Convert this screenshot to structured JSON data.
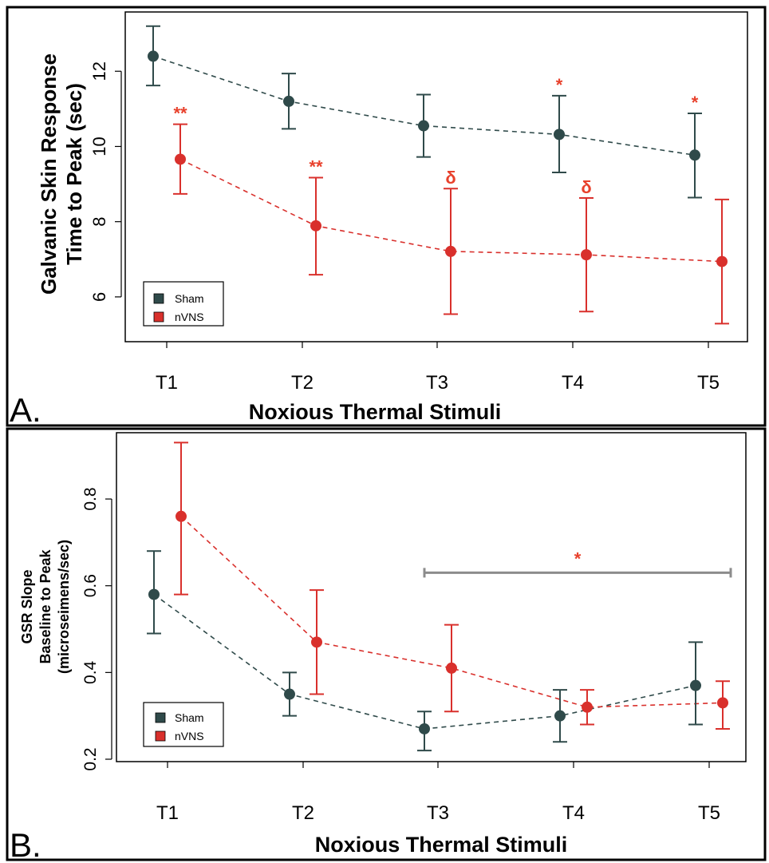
{
  "colors": {
    "sham": "#2f4a4a",
    "nvns": "#d9302c",
    "annotation": "#e8412c",
    "bracket": "#8c8c8c",
    "frame": "#000000"
  },
  "chart_data": [
    {
      "type": "line",
      "panel_label": "A.",
      "ylabel_lines": [
        "Galvanic Skin Response",
        "Time to Peak (sec)"
      ],
      "xlabel": "Noxious Thermal Stimuli",
      "categories": [
        "T1",
        "T2",
        "T3",
        "T4",
        "T5"
      ],
      "yticks": [
        6,
        8,
        10,
        12
      ],
      "ylim": [
        5.0,
        13.3
      ],
      "legend_position": "bottom-left",
      "series": [
        {
          "name": "Sham",
          "color_key": "sham",
          "values": [
            12.4,
            11.2,
            10.55,
            10.32,
            9.77
          ],
          "err_low": [
            11.62,
            10.47,
            9.72,
            9.31,
            8.64
          ],
          "err_high": [
            13.2,
            11.94,
            11.38,
            11.35,
            10.88
          ]
        },
        {
          "name": "nVNS",
          "color_key": "nvns",
          "values": [
            9.66,
            7.89,
            7.21,
            7.12,
            6.94
          ],
          "err_low": [
            8.74,
            6.59,
            5.54,
            5.61,
            5.29
          ],
          "err_high": [
            10.59,
            9.17,
            8.88,
            8.63,
            8.59
          ]
        }
      ],
      "annotations": [
        {
          "text": "**",
          "series": 1,
          "category": 0
        },
        {
          "text": "**",
          "series": 1,
          "category": 1
        },
        {
          "text": "δ",
          "series": 1,
          "category": 2
        },
        {
          "text": "*",
          "series": 0,
          "category": 3
        },
        {
          "text": "δ",
          "series": 1,
          "category": 3
        },
        {
          "text": "*",
          "series": 0,
          "category": 4
        }
      ]
    },
    {
      "type": "line",
      "panel_label": "B.",
      "ylabel_lines": [
        "GSR Slope",
        "Baseline to Peak",
        "(microseimens/sec)"
      ],
      "xlabel": "Noxious Thermal Stimuli",
      "categories": [
        "T1",
        "T2",
        "T3",
        "T4",
        "T5"
      ],
      "yticks": [
        0.2,
        0.4,
        0.6,
        0.8
      ],
      "ylim": [
        0.2,
        0.94
      ],
      "legend_position": "bottom-left",
      "series": [
        {
          "name": "Sham",
          "color_key": "sham",
          "values": [
            0.58,
            0.35,
            0.27,
            0.3,
            0.37
          ],
          "err_low": [
            0.49,
            0.3,
            0.22,
            0.24,
            0.28
          ],
          "err_high": [
            0.68,
            0.4,
            0.31,
            0.36,
            0.47
          ]
        },
        {
          "name": "nVNS",
          "color_key": "nvns",
          "values": [
            0.76,
            0.47,
            0.41,
            0.32,
            0.33
          ],
          "err_low": [
            0.58,
            0.35,
            0.31,
            0.28,
            0.27
          ],
          "err_high": [
            0.93,
            0.59,
            0.51,
            0.36,
            0.38
          ]
        }
      ],
      "bracket": {
        "text": "*",
        "from_category": 2,
        "to_category": 4,
        "y": 0.63
      }
    }
  ]
}
